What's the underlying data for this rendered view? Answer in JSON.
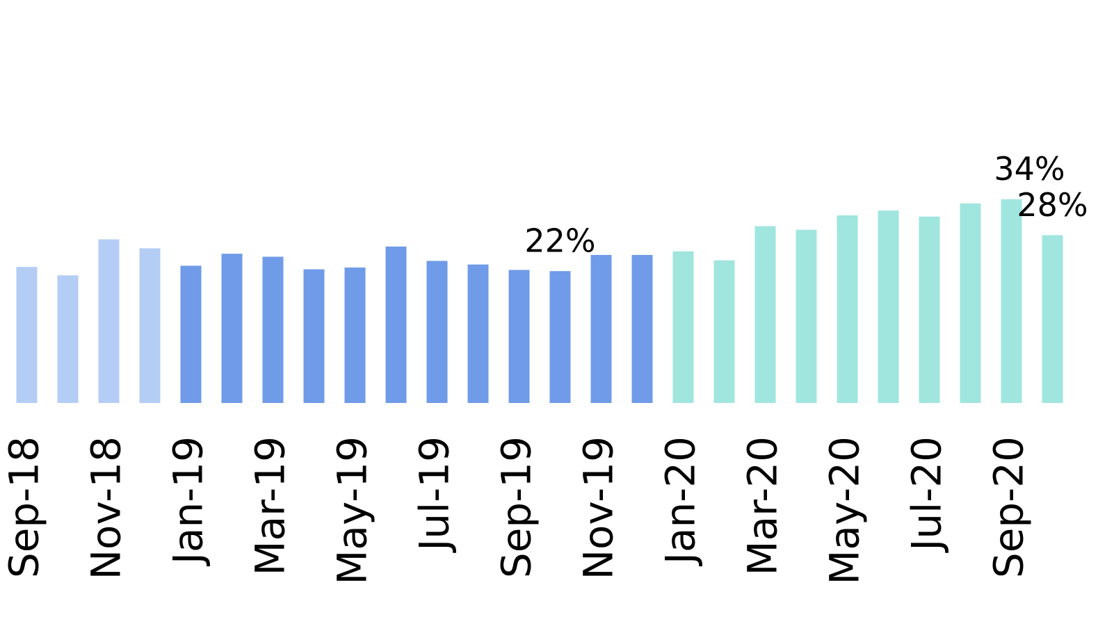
{
  "chart_data": {
    "type": "bar",
    "categories": [
      "Sep-18",
      null,
      "Nov-18",
      null,
      "Jan-19",
      null,
      "Mar-19",
      null,
      "May-19",
      null,
      "Jul-19",
      null,
      "Sep-19",
      null,
      "Nov-19",
      null,
      "Jan-20",
      null,
      "Mar-20",
      null,
      "May-20",
      null,
      "Jul-20",
      null,
      "Sep-20",
      null
    ],
    "values": [
      22.7,
      21.3,
      27.3,
      25.8,
      22.9,
      24.9,
      24.4,
      22.3,
      22.6,
      26.1,
      23.7,
      23.1,
      22.2,
      22,
      24.7,
      24.7,
      25.3,
      23.8,
      29.5,
      28.9,
      31.3,
      32.1,
      31.1,
      33.3,
      34,
      28
    ],
    "value_labels": [
      null,
      null,
      null,
      null,
      null,
      null,
      null,
      null,
      null,
      null,
      null,
      null,
      null,
      "22%",
      null,
      null,
      null,
      null,
      null,
      null,
      null,
      null,
      null,
      null,
      "34%",
      "28%"
    ],
    "colors": [
      "#b4cdf5",
      "#b4cdf5",
      "#b4cdf5",
      "#b4cdf5",
      "#6f9be8",
      "#6f9be8",
      "#6f9be8",
      "#6f9be8",
      "#6f9be8",
      "#6f9be8",
      "#6f9be8",
      "#6f9be8",
      "#6f9be8",
      "#6f9be8",
      "#6f9be8",
      "#6f9be8",
      "#a0e6df",
      "#a0e6df",
      "#a0e6df",
      "#a0e6df",
      "#a0e6df",
      "#a0e6df",
      "#a0e6df",
      "#a0e6df",
      "#a0e6df",
      "#a0e6df"
    ],
    "ylim": [
      0,
      67
    ]
  }
}
